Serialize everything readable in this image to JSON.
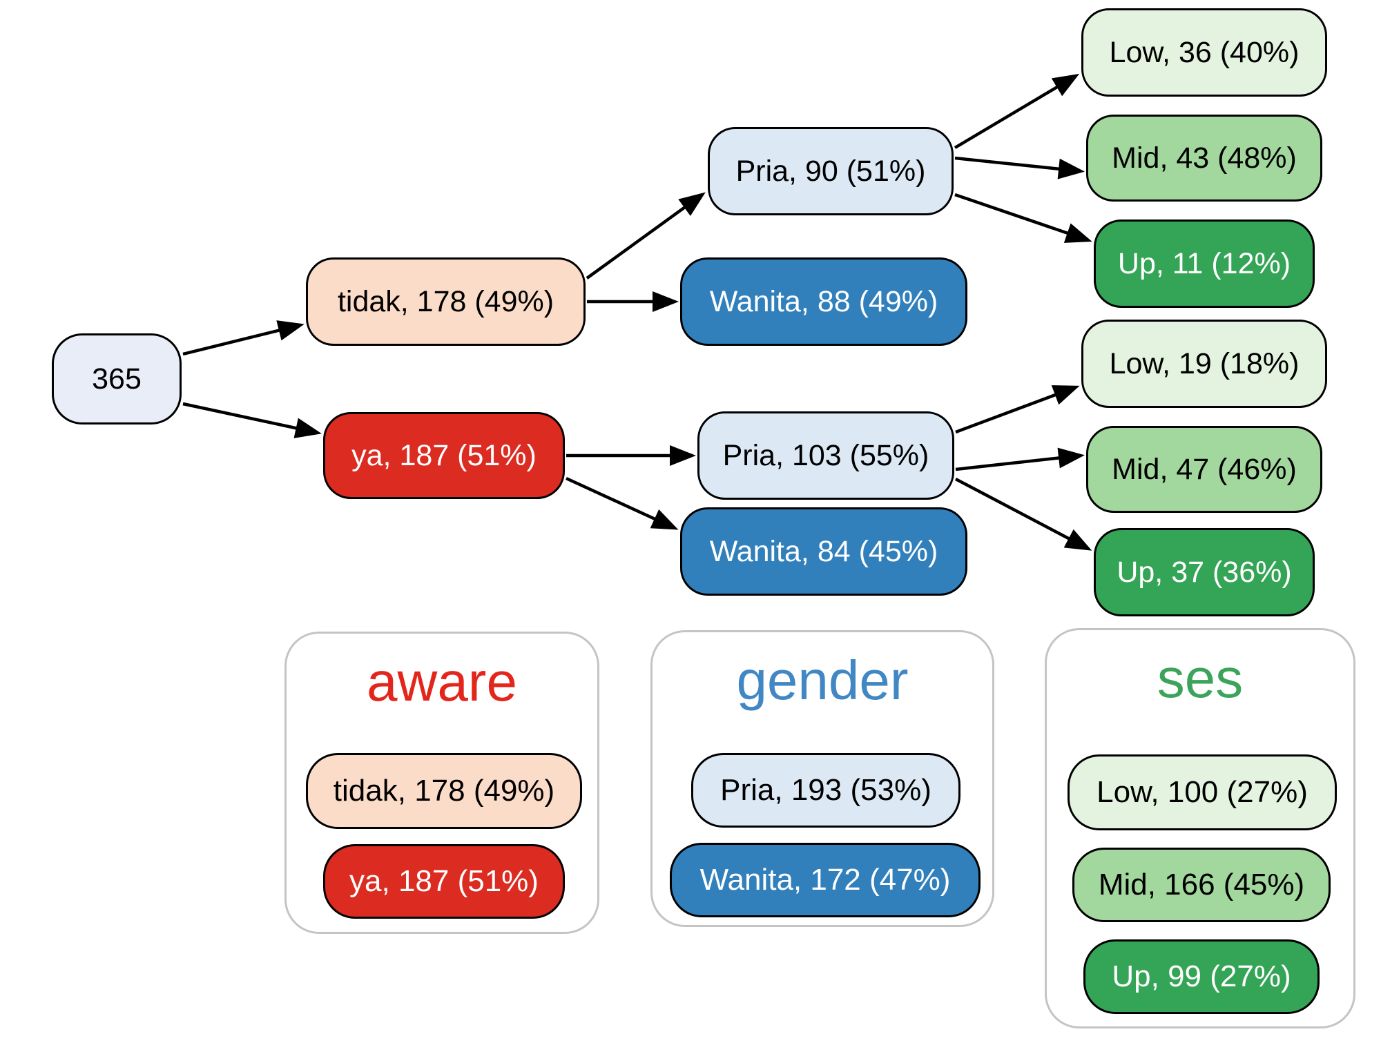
{
  "diagram": {
    "nodes": {
      "root": {
        "label": "365",
        "fill": "#E9EDF8",
        "text_color": "#000000"
      },
      "tidak": {
        "label": "tidak, 178 (49%)",
        "fill": "#FBDCC8",
        "text_color": "#000000"
      },
      "ya": {
        "label": "ya, 187 (51%)",
        "fill": "#DC2B21",
        "text_color": "#FFFFFF"
      },
      "pria90": {
        "label": "Pria, 90 (51%)",
        "fill": "#DCE9F5",
        "text_color": "#000000"
      },
      "wanita88": {
        "label": "Wanita, 88 (49%)",
        "fill": "#3180BC",
        "text_color": "#FFFFFF"
      },
      "pria103": {
        "label": "Pria, 103 (55%)",
        "fill": "#DCE9F5",
        "text_color": "#000000"
      },
      "wanita84": {
        "label": "Wanita, 84 (45%)",
        "fill": "#3180BC",
        "text_color": "#FFFFFF"
      },
      "low36": {
        "label": "Low, 36 (40%)",
        "fill": "#E4F3DF",
        "text_color": "#000000"
      },
      "mid43": {
        "label": "Mid, 43 (48%)",
        "fill": "#A2D79D",
        "text_color": "#000000"
      },
      "up11": {
        "label": "Up, 11 (12%)",
        "fill": "#34A456",
        "text_color": "#FFFFFF"
      },
      "low19": {
        "label": "Low, 19 (18%)",
        "fill": "#E4F3DF",
        "text_color": "#000000"
      },
      "mid47": {
        "label": "Mid, 47 (46%)",
        "fill": "#A2D79D",
        "text_color": "#000000"
      },
      "up37": {
        "label": "Up, 37 (36%)",
        "fill": "#34A456",
        "text_color": "#FFFFFF"
      }
    },
    "edges": [
      [
        "root",
        "tidak"
      ],
      [
        "root",
        "ya"
      ],
      [
        "tidak",
        "pria90"
      ],
      [
        "tidak",
        "wanita88"
      ],
      [
        "pria90",
        "low36"
      ],
      [
        "pria90",
        "mid43"
      ],
      [
        "pria90",
        "up11"
      ],
      [
        "ya",
        "pria103"
      ],
      [
        "ya",
        "wanita84"
      ],
      [
        "pria103",
        "low19"
      ],
      [
        "pria103",
        "mid47"
      ],
      [
        "pria103",
        "up37"
      ]
    ],
    "edge_color": "#000000"
  },
  "legend": {
    "aware": {
      "title": "aware",
      "title_color": "#E3261B",
      "items": {
        "tidak": {
          "label": "tidak, 178 (49%)",
          "fill": "#FBDCC8",
          "text_color": "#000000"
        },
        "ya": {
          "label": "ya, 187 (51%)",
          "fill": "#DC2B21",
          "text_color": "#FFFFFF"
        }
      }
    },
    "gender": {
      "title": "gender",
      "title_color": "#4187C4",
      "items": {
        "pria": {
          "label": "Pria, 193 (53%)",
          "fill": "#DCE9F5",
          "text_color": "#000000"
        },
        "wanita": {
          "label": "Wanita, 172 (47%)",
          "fill": "#3180BC",
          "text_color": "#FFFFFF"
        }
      }
    },
    "ses": {
      "title": "ses",
      "title_color": "#3CA45A",
      "items": {
        "low": {
          "label": "Low, 100 (27%)",
          "fill": "#E4F3DF",
          "text_color": "#000000"
        },
        "mid": {
          "label": "Mid, 166 (45%)",
          "fill": "#A2D79D",
          "text_color": "#000000"
        },
        "up": {
          "label": "Up, 99 (27%)",
          "fill": "#34A456",
          "text_color": "#FFFFFF"
        }
      }
    }
  }
}
